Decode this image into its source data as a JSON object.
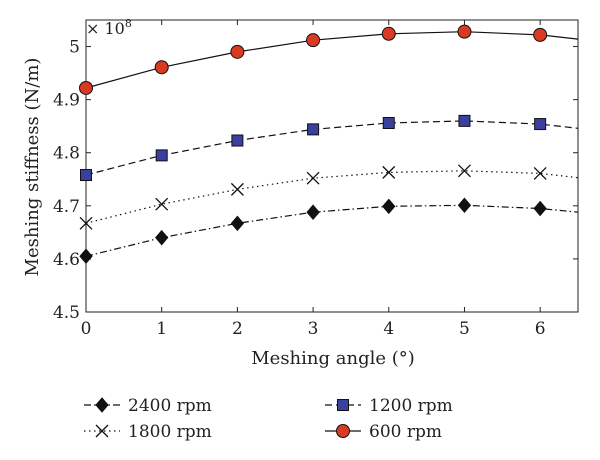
{
  "chart_data": {
    "type": "line",
    "title": "",
    "xlabel": "Meshing angle (°)",
    "ylabel": "Meshing stiffness (N/m)",
    "y_multiplier": "× 10",
    "y_multiplier_exp": "8",
    "xlim": [
      0,
      6.5
    ],
    "ylim": [
      4.5,
      5.05
    ],
    "x_ticks": [
      0,
      1,
      2,
      3,
      4,
      5,
      6
    ],
    "y_ticks": [
      4.5,
      4.6,
      4.7,
      4.8,
      4.9,
      5
    ],
    "x_tick_labels": [
      "0",
      "1",
      "2",
      "3",
      "4",
      "5",
      "6"
    ],
    "y_tick_labels": [
      "4.5",
      "4.6",
      "4.7",
      "4.8",
      "4.9",
      "5"
    ],
    "grid": false,
    "legend_position": "bottom",
    "series": [
      {
        "name": "2400 rpm",
        "marker": "diamond",
        "dash": "dashdot",
        "marker_fill": "#111111",
        "x": [
          0,
          1,
          2,
          3,
          4,
          5,
          6,
          6.5
        ],
        "y": [
          4.605,
          4.64,
          4.667,
          4.688,
          4.699,
          4.701,
          4.695,
          4.688
        ],
        "marker_x": [
          0,
          1,
          2,
          3,
          4,
          5,
          6
        ]
      },
      {
        "name": "1800 rpm",
        "marker": "x",
        "dash": "dotted",
        "marker_fill": "#111111",
        "x": [
          0,
          1,
          2,
          3,
          4,
          5,
          6,
          6.5
        ],
        "y": [
          4.667,
          4.703,
          4.731,
          4.752,
          4.763,
          4.766,
          4.761,
          4.753
        ],
        "marker_x": [
          0,
          1,
          2,
          3,
          4,
          5,
          6
        ]
      },
      {
        "name": "1200 rpm",
        "marker": "square",
        "dash": "dashed",
        "marker_fill": "#3b3f9e",
        "x": [
          0,
          1,
          2,
          3,
          4,
          5,
          6,
          6.5
        ],
        "y": [
          4.758,
          4.795,
          4.823,
          4.844,
          4.856,
          4.86,
          4.854,
          4.846
        ],
        "marker_x": [
          0,
          1,
          2,
          3,
          4,
          5,
          6
        ]
      },
      {
        "name": "600 rpm",
        "marker": "circle",
        "dash": "solid",
        "marker_fill": "#d83a22",
        "x": [
          0,
          1,
          2,
          3,
          4,
          5,
          6,
          6.5
        ],
        "y": [
          4.922,
          4.961,
          4.99,
          5.012,
          5.024,
          5.028,
          5.022,
          5.014
        ],
        "marker_x": [
          0,
          1,
          2,
          3,
          4,
          5,
          6
        ]
      }
    ]
  }
}
